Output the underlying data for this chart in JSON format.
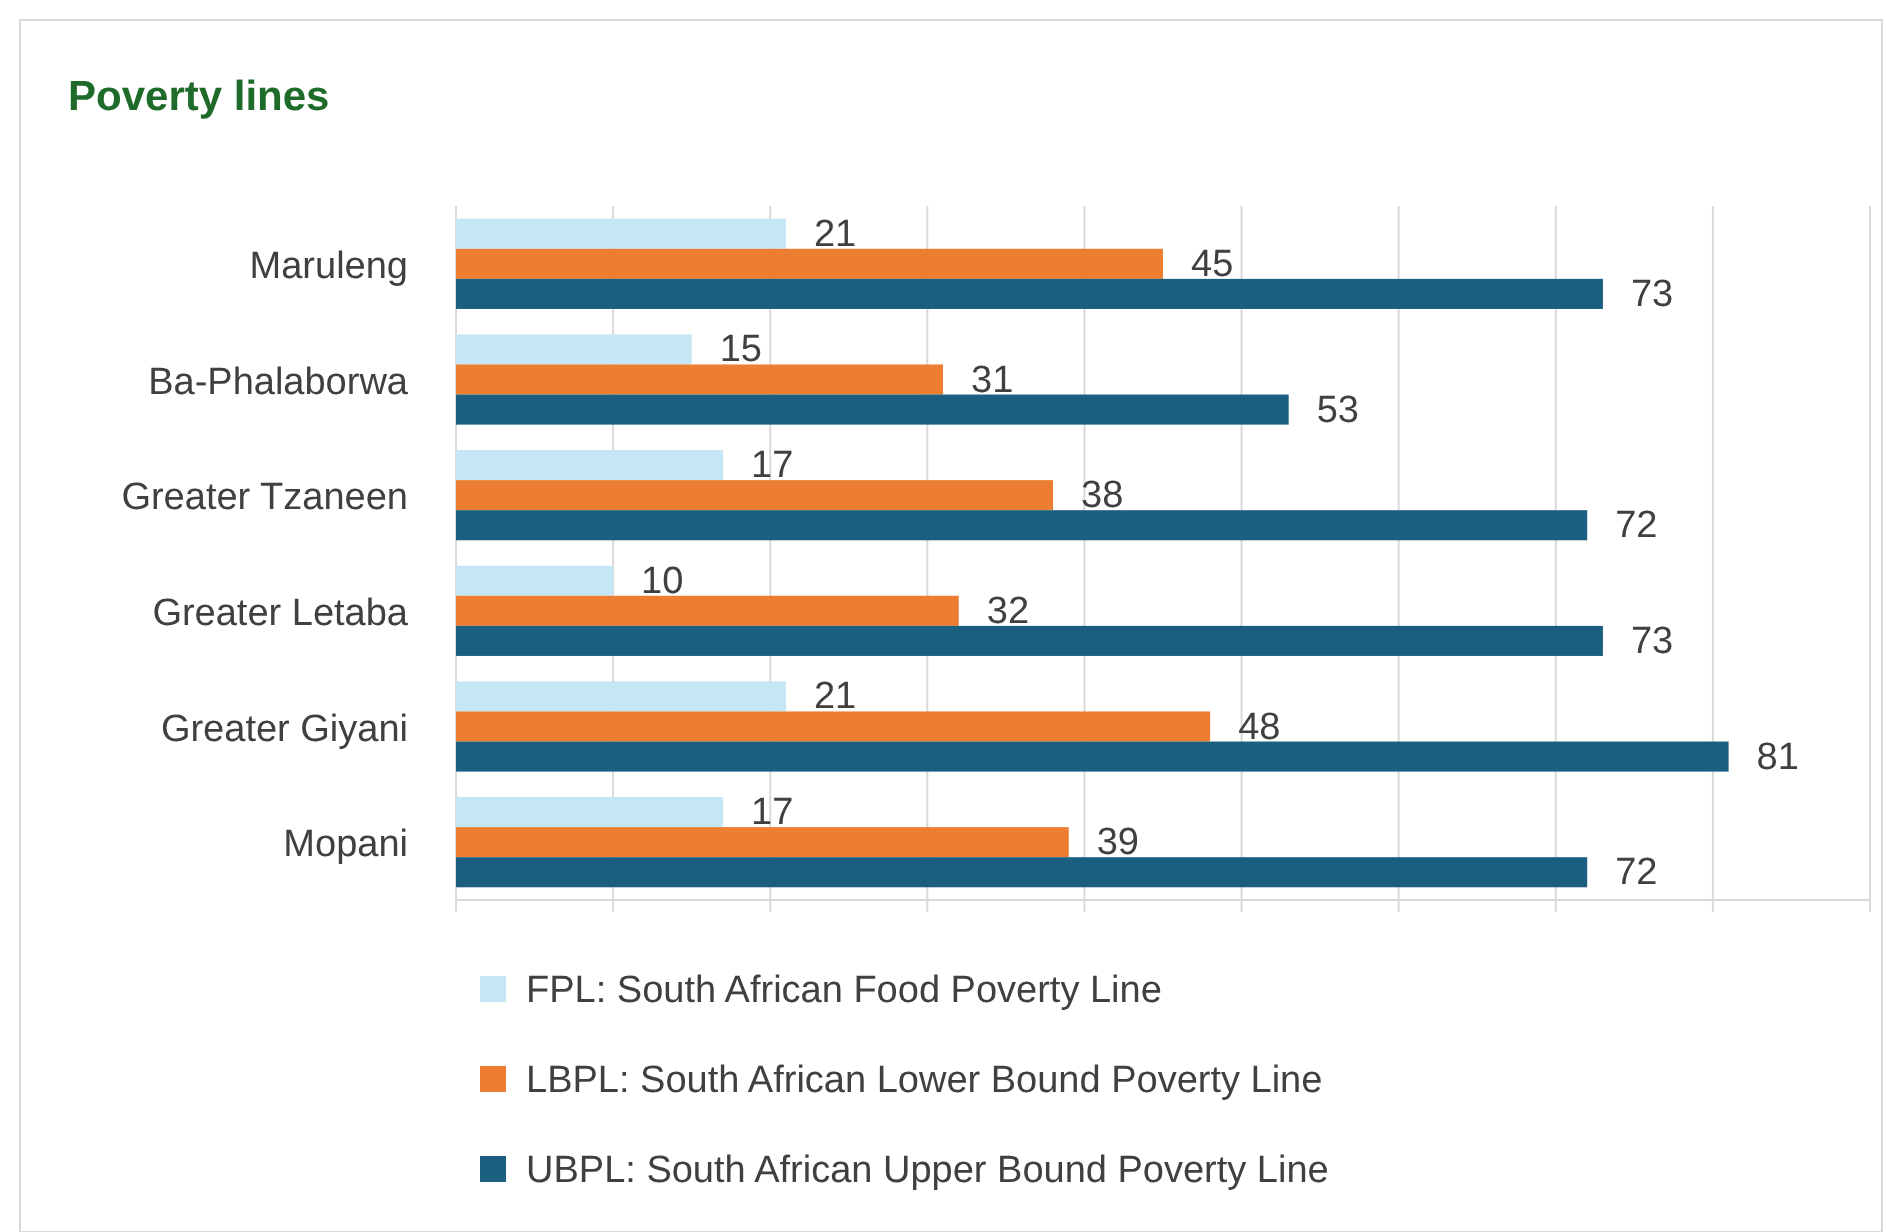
{
  "chart_data": {
    "type": "bar",
    "title": "Poverty lines",
    "orientation": "horizontal",
    "categories": [
      "Maruleng",
      "Ba-Phalaborwa",
      "Greater Tzaneen",
      "Greater Letaba",
      "Greater Giyani",
      "Mopani"
    ],
    "series": [
      {
        "name": "FPL: South African Food Poverty Line",
        "color": "#c5e6f5",
        "values": [
          21,
          15,
          17,
          10,
          21,
          17
        ]
      },
      {
        "name": "LBPL: South African Lower Bound Poverty Line",
        "color": "#ed7d31",
        "values": [
          45,
          31,
          38,
          32,
          48,
          39
        ]
      },
      {
        "name": "UBPL: South African Upper Bound Poverty Line",
        "color": "#1a5e80",
        "values": [
          73,
          53,
          72,
          73,
          81,
          72
        ]
      }
    ],
    "xlim": [
      0,
      90
    ],
    "xticks": [
      {
        "value": 0,
        "label": null
      },
      {
        "value": 10,
        "label": null
      },
      {
        "value": 20,
        "label": null
      },
      {
        "value": 30,
        "label": null
      },
      {
        "value": 40,
        "label": null
      },
      {
        "value": 50,
        "label": null
      },
      {
        "value": 60,
        "label": null
      },
      {
        "value": 70,
        "label": null
      },
      {
        "value": 80,
        "label": null
      },
      {
        "value": 90,
        "label": null
      }
    ],
    "grid": "x",
    "data_labels": true,
    "legend": "bottom",
    "tick_labels": "y"
  }
}
